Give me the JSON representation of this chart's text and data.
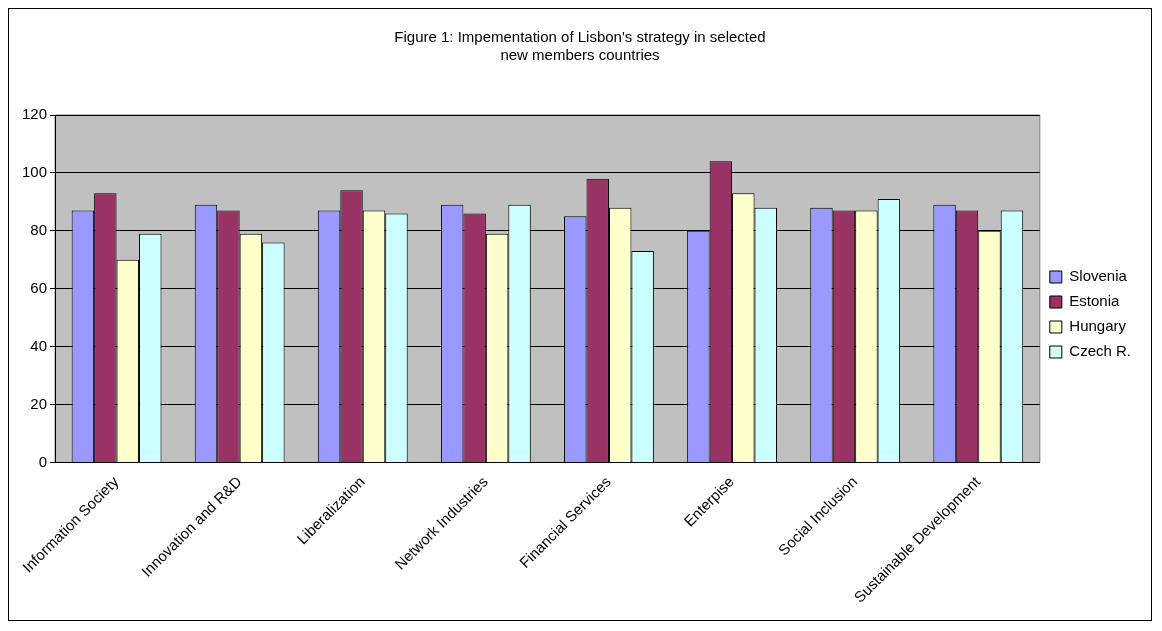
{
  "chart_data": {
    "type": "bar",
    "title": [
      "Figure 1: Impementation of Lisbon's strategy in selected",
      "new members countries"
    ],
    "categories": [
      "Information Society",
      "Innovation and R&D",
      "Liberalization",
      "Network Industries",
      "Financial Services",
      "Enterpise",
      "Social Inclusion",
      "Sustainable Development"
    ],
    "series": [
      {
        "name": "Slovenia",
        "color": "#9999ff",
        "values": [
          87,
          89,
          87,
          89,
          85,
          80,
          88,
          89
        ]
      },
      {
        "name": "Estonia",
        "color": "#993366",
        "values": [
          93,
          87,
          94,
          86,
          98,
          104,
          87,
          87
        ]
      },
      {
        "name": "Hungary",
        "color": "#ffffcc",
        "values": [
          70,
          79,
          87,
          79,
          88,
          93,
          87,
          80
        ]
      },
      {
        "name": "Czech R.",
        "color": "#ccffff",
        "values": [
          79,
          76,
          86,
          89,
          73,
          88,
          91,
          87
        ]
      }
    ],
    "ylim": [
      0,
      120
    ],
    "yticks": [
      0,
      20,
      40,
      60,
      80,
      100,
      120
    ],
    "grid": "y",
    "legend": "right"
  }
}
